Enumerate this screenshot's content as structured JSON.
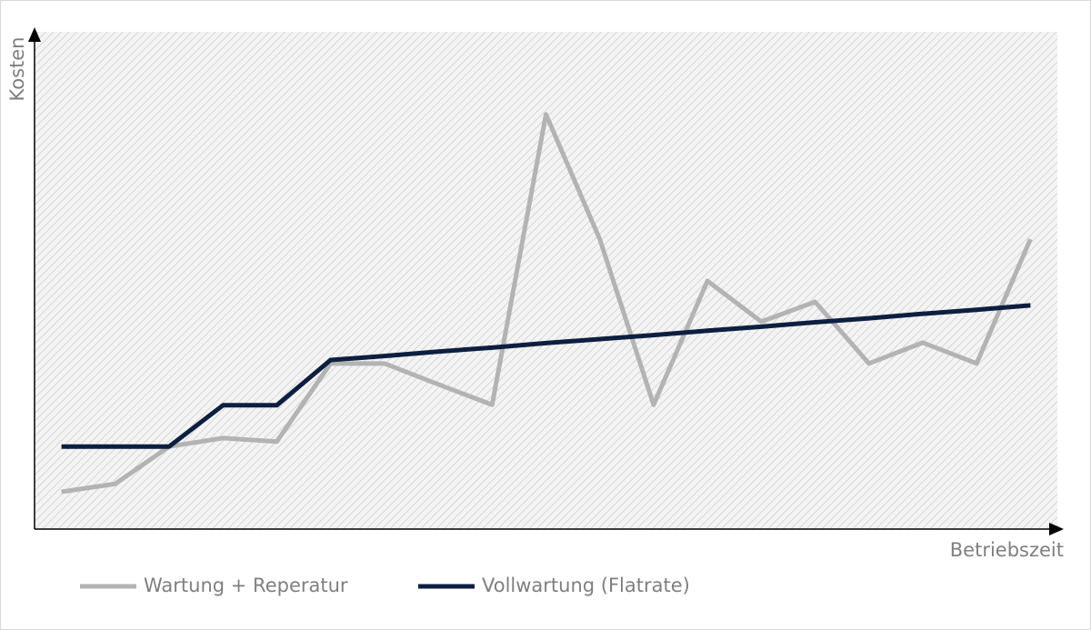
{
  "chart_data": {
    "type": "line",
    "x_label": "Betriebszeit",
    "y_label": "Kosten",
    "categories": [
      null,
      null,
      null,
      null,
      null,
      null,
      null,
      null,
      null,
      null,
      null,
      null,
      null,
      null,
      null,
      null,
      null,
      null,
      null
    ],
    "series": [
      {
        "name": "Wartung + Reperatur",
        "color": "#b3b3b3",
        "values": [
          7.5,
          9.1,
          16.6,
          18.3,
          17.6,
          33.3,
          33.3,
          29.1,
          25.0,
          83.4,
          58.3,
          25.0,
          49.9,
          41.7,
          45.7,
          33.3,
          37.5,
          33.3,
          58.3
        ]
      },
      {
        "name": "Vollwartung (Flatrate)",
        "color": "#0d1f40",
        "values": [
          16.6,
          16.6,
          16.6,
          24.9,
          24.9,
          34.0,
          34.8,
          35.7,
          36.5,
          37.4,
          38.2,
          39.0,
          39.9,
          40.7,
          41.6,
          42.4,
          43.3,
          44.1,
          45.0
        ]
      }
    ],
    "ylim": [
      0,
      100
    ],
    "legend": "bottom"
  }
}
